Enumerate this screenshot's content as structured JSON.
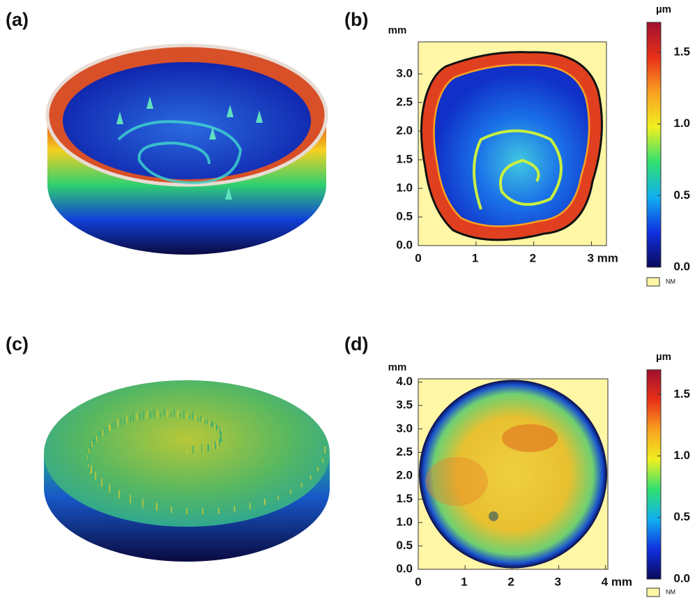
{
  "chart_data": [
    {
      "type": "surface",
      "label": "(a)"
    },
    {
      "type": "heatmap",
      "label": "(b)",
      "ylabel": "mm",
      "xlim": [
        0,
        3.26
      ],
      "ylim": [
        0,
        3.56
      ],
      "xticks": [
        0,
        1,
        2,
        {
          "value": 3,
          "label": "3 mm"
        }
      ],
      "yticks": [
        {
          "value": 0,
          "label": "0.0"
        },
        {
          "value": 0.5,
          "label": "0.5"
        },
        {
          "value": 1,
          "label": "1.0"
        },
        {
          "value": 1.5,
          "label": "1.5"
        },
        {
          "value": 2,
          "label": "2.0"
        },
        {
          "value": 2.5,
          "label": "2.5"
        },
        {
          "value": 3,
          "label": "3.0"
        }
      ],
      "colorbar_title": "µm",
      "clim": [
        0,
        1.71
      ],
      "cticks": [
        {
          "value": 0,
          "label": "0.0"
        },
        {
          "value": 0.5,
          "label": "0.5"
        },
        {
          "value": 1,
          "label": "1.0"
        },
        {
          "value": 1.5,
          "label": "1.5"
        }
      ],
      "colormap": [
        "#0a0a5a",
        "#1030e0",
        "#10b0f0",
        "#30e070",
        "#f0f020",
        "#f8a020",
        "#e83018",
        "#a01030"
      ],
      "nodata_label": "NM",
      "nodata_color": "#fff6a6"
    },
    {
      "type": "surface",
      "label": "(c)"
    },
    {
      "type": "heatmap",
      "label": "(d)",
      "ylabel": "mm",
      "xlim": [
        0,
        4.05
      ],
      "ylim": [
        0,
        4.07
      ],
      "xticks": [
        0,
        1,
        2,
        3,
        {
          "value": 4,
          "label": "4 mm"
        }
      ],
      "yticks": [
        {
          "value": 0,
          "label": "0.0"
        },
        {
          "value": 0.5,
          "label": "0.5"
        },
        {
          "value": 1,
          "label": "1.0"
        },
        {
          "value": 1.5,
          "label": "1.5"
        },
        {
          "value": 2,
          "label": "2.0"
        },
        {
          "value": 2.5,
          "label": "2.5"
        },
        {
          "value": 3,
          "label": "3.0"
        },
        {
          "value": 3.5,
          "label": "3.5"
        },
        {
          "value": 4,
          "label": "4.0"
        }
      ],
      "colorbar_title": "µm",
      "clim": [
        0,
        1.7
      ],
      "cticks": [
        {
          "value": 0,
          "label": "0.0"
        },
        {
          "value": 0.5,
          "label": "0.5"
        },
        {
          "value": 1,
          "label": "1.0"
        },
        {
          "value": 1.5,
          "label": "1.5"
        }
      ],
      "colormap": [
        "#0a0a5a",
        "#1030e0",
        "#10b0f0",
        "#30e070",
        "#f0f020",
        "#f8a020",
        "#e83018",
        "#a01030"
      ],
      "nodata_label": "NM",
      "nodata_color": "#fff6a6"
    }
  ]
}
